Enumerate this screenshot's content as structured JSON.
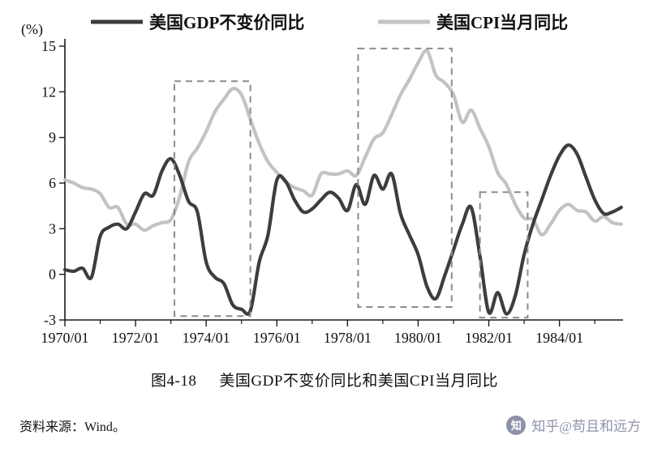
{
  "chart_data": {
    "type": "line",
    "title": "美国GDP不变价同比和美国CPI当月同比",
    "ylabel": "(%)",
    "xlim": [
      1970,
      1985.8
    ],
    "ylim": [
      -3,
      15
    ],
    "x_ticks": [
      1970,
      1972,
      1974,
      1976,
      1978,
      1980,
      1982,
      1984
    ],
    "x_tick_labels": [
      "1970/01",
      "1972/01",
      "1974/01",
      "1976/01",
      "1978/01",
      "1980/01",
      "1982/01",
      "1984/01"
    ],
    "x_minor_ticks": [
      1971,
      1973,
      1975,
      1977,
      1979,
      1981,
      1983,
      1985
    ],
    "y_ticks": [
      -3,
      0,
      3,
      6,
      9,
      12,
      15
    ],
    "grid": false,
    "legend_position": "top",
    "box_color": "#8c8c8c",
    "series": [
      {
        "id": "gdp-line",
        "name": "美国GDP不变价同比",
        "color": "#3d3d3d",
        "width": 4.2,
        "x_start": 1970,
        "x_step": 0.25,
        "values": [
          0.3,
          0.2,
          0.4,
          -0.2,
          2.5,
          3.1,
          3.3,
          3.0,
          4.1,
          5.3,
          5.2,
          6.8,
          7.6,
          6.5,
          4.8,
          4.1,
          0.8,
          -0.2,
          -0.6,
          -2.0,
          -2.3,
          -2.4,
          0.8,
          2.6,
          6.2,
          6.1,
          4.9,
          4.1,
          4.3,
          4.9,
          5.4,
          5.0,
          4.2,
          5.9,
          4.6,
          6.5,
          5.6,
          6.6,
          4.0,
          2.6,
          1.3,
          -0.8,
          -1.6,
          -0.1,
          1.6,
          3.3,
          4.4,
          1.2,
          -2.5,
          -1.2,
          -2.6,
          -1.4,
          1.3,
          3.3,
          4.9,
          6.5,
          7.8,
          8.5,
          7.9,
          6.4,
          4.9,
          4.0,
          4.1,
          4.4
        ]
      },
      {
        "id": "cpi-line",
        "name": "美国CPI当月同比",
        "color": "#c3c3c3",
        "width": 4.2,
        "x_start": 1970,
        "x_step": 0.25,
        "values": [
          6.2,
          6.0,
          5.7,
          5.6,
          5.3,
          4.4,
          4.4,
          3.3,
          3.3,
          2.9,
          3.2,
          3.4,
          3.6,
          5.1,
          7.4,
          8.3,
          9.4,
          10.7,
          11.5,
          12.2,
          11.8,
          10.2,
          8.6,
          7.4,
          6.7,
          6.1,
          5.7,
          5.5,
          5.2,
          6.6,
          6.6,
          6.6,
          6.8,
          6.5,
          7.7,
          8.9,
          9.3,
          10.5,
          11.8,
          12.8,
          13.9,
          14.7,
          13.1,
          12.6,
          11.8,
          10.0,
          10.8,
          9.6,
          8.4,
          6.7,
          5.9,
          4.6,
          3.7,
          3.6,
          2.6,
          3.3,
          4.2,
          4.6,
          4.2,
          4.1,
          3.5,
          3.8,
          3.4,
          3.3
        ]
      }
    ],
    "highlight_boxes": [
      {
        "x0": 1973.1,
        "x1": 1975.25,
        "y0": -2.75,
        "y1": 12.7
      },
      {
        "x0": 1978.3,
        "x1": 1980.95,
        "y0": -2.15,
        "y1": 14.85
      },
      {
        "x0": 1981.75,
        "x1": 1983.1,
        "y0": -2.85,
        "y1": 5.4
      }
    ]
  },
  "caption": {
    "fig_no": "图4-18",
    "title": "美国GDP不变价同比和美国CPI当月同比"
  },
  "source": "资料来源：Wind。",
  "watermark": {
    "icon_text": "知",
    "text": "知乎@苟且和远方",
    "color": "#8e93a9"
  }
}
